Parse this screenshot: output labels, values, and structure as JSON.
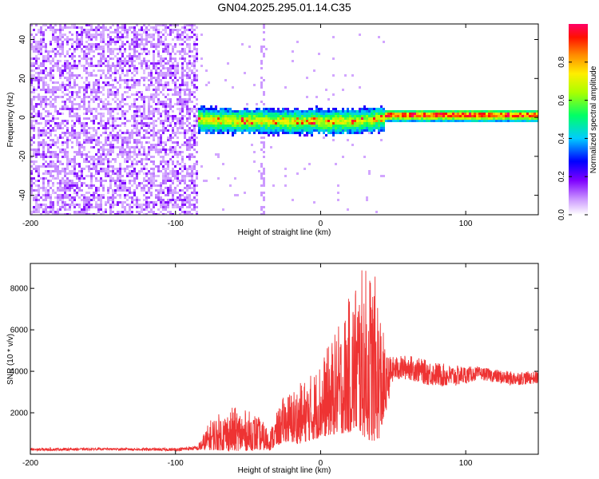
{
  "title": "GN04.2025.295.01.14.C35",
  "chart_data": [
    {
      "type": "heatmap",
      "name": "spectrogram",
      "xlabel": "Height of straight line (km)",
      "ylabel": "Frequency (Hz)",
      "xlim": [
        -200,
        150
      ],
      "ylim": [
        -50,
        48
      ],
      "xticks": [
        -200,
        -100,
        0,
        100
      ],
      "yticks": [
        -40,
        -20,
        0,
        20,
        40
      ],
      "colorbar": {
        "label": "Normalized spectral amplitude",
        "range": [
          0,
          1
        ],
        "ticks": [
          0.0,
          0.2,
          0.4,
          0.6,
          0.8
        ],
        "tick_labels": [
          "0.0",
          "0.2",
          "0.4",
          "0.6",
          "0.8"
        ],
        "colors": [
          "#ffffff",
          "#7f00ff",
          "#0000ff",
          "#00ffff",
          "#00ff00",
          "#ffff00",
          "#ff7f00",
          "#ff0000",
          "#ff0080"
        ]
      },
      "regions": [
        {
          "x_range": [
            -200,
            -85
          ],
          "description_value": "broadband noise",
          "freq_range": [
            -50,
            48
          ],
          "amplitude": 0.2
        },
        {
          "x_range": [
            -85,
            45
          ],
          "center_freq": 0,
          "bandwidth": 10,
          "amplitude": 0.5
        },
        {
          "x_range": [
            45,
            150
          ],
          "center_freq": 1,
          "bandwidth": 6,
          "amplitude": 0.7
        }
      ]
    },
    {
      "type": "line",
      "name": "snr",
      "xlabel": "Height of straight line (km)",
      "ylabel": "SNR (10 * v/v)",
      "xlim": [
        -200,
        150
      ],
      "ylim": [
        0,
        9200
      ],
      "xticks": [
        -200,
        -100,
        0,
        100
      ],
      "yticks": [
        2000,
        4000,
        6000,
        8000
      ],
      "color": "#ee3333",
      "envelope": {
        "x": [
          -200,
          -150,
          -100,
          -85,
          -75,
          -60,
          -45,
          -35,
          -25,
          -15,
          -5,
          5,
          15,
          25,
          35,
          40,
          45,
          50,
          60,
          75,
          90,
          110,
          130,
          150
        ],
        "y_low": [
          150,
          200,
          150,
          200,
          200,
          150,
          200,
          200,
          600,
          500,
          700,
          900,
          1000,
          1100,
          600,
          700,
          2000,
          3500,
          3600,
          3300,
          3200,
          3600,
          3300,
          3400
        ],
        "y_high": [
          300,
          300,
          300,
          400,
          1800,
          2300,
          2000,
          1200,
          2900,
          3400,
          4000,
          5200,
          6600,
          8800,
          9200,
          8000,
          4800,
          4700,
          4800,
          4500,
          4300,
          4200,
          4000,
          4000
        ]
      }
    }
  ]
}
